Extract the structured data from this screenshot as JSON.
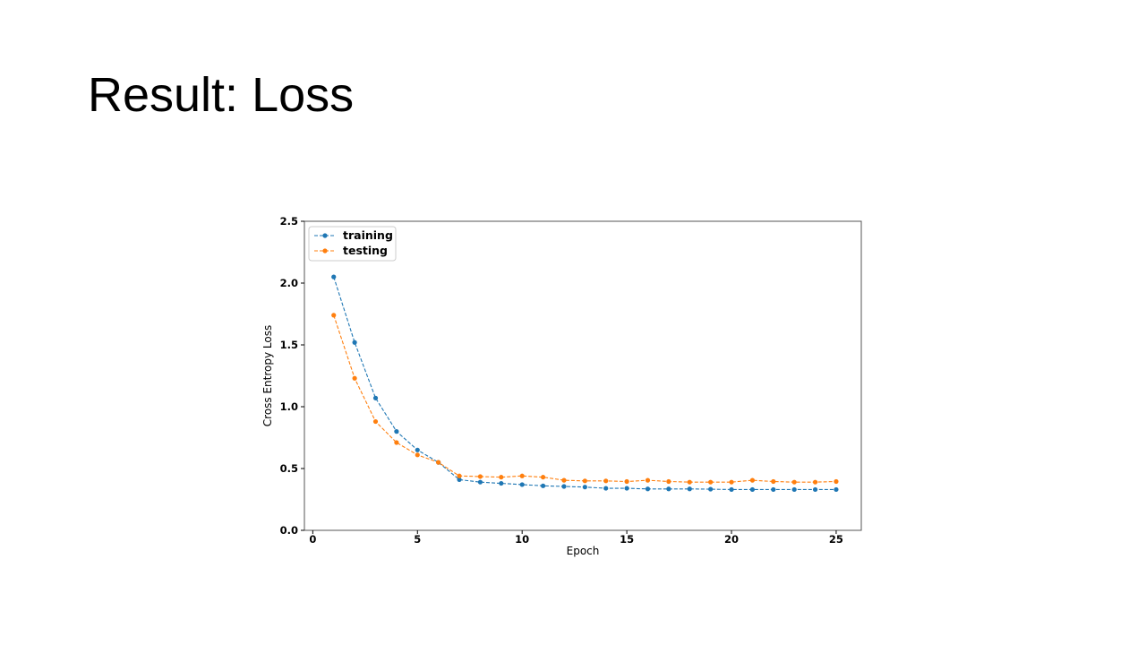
{
  "slide": {
    "title": "Result: Loss"
  },
  "chart_data": {
    "type": "line",
    "title": "",
    "xlabel": "Epoch",
    "ylabel": "Cross Entropy Loss",
    "xlim": [
      -0.4,
      26.2
    ],
    "ylim": [
      0.0,
      2.5
    ],
    "xticks": [
      0,
      5,
      10,
      15,
      20,
      25
    ],
    "yticks": [
      0.0,
      0.5,
      1.0,
      1.5,
      2.0,
      2.5
    ],
    "xtick_labels": [
      "0",
      "5",
      "10",
      "15",
      "20",
      "25"
    ],
    "ytick_labels": [
      "0.0",
      "0.5",
      "1.0",
      "1.5",
      "2.0",
      "2.5"
    ],
    "grid": false,
    "legend_position": "top-left",
    "line_style": "dashed",
    "marker": "circle",
    "x": [
      1,
      2,
      3,
      4,
      5,
      6,
      7,
      8,
      9,
      10,
      11,
      12,
      13,
      14,
      15,
      16,
      17,
      18,
      19,
      20,
      21,
      22,
      23,
      24,
      25
    ],
    "series": [
      {
        "name": "training",
        "color": "#1f77b4",
        "values": [
          2.05,
          1.52,
          1.07,
          0.8,
          0.65,
          0.55,
          0.41,
          0.39,
          0.38,
          0.37,
          0.36,
          0.355,
          0.35,
          0.34,
          0.34,
          0.335,
          0.335,
          0.335,
          0.333,
          0.33,
          0.33,
          0.33,
          0.33,
          0.33,
          0.33
        ]
      },
      {
        "name": "testing",
        "color": "#ff7f0e",
        "values": [
          1.74,
          1.23,
          0.88,
          0.71,
          0.61,
          0.55,
          0.44,
          0.435,
          0.43,
          0.44,
          0.43,
          0.405,
          0.4,
          0.4,
          0.395,
          0.405,
          0.395,
          0.39,
          0.39,
          0.39,
          0.405,
          0.395,
          0.39,
          0.39,
          0.395
        ]
      }
    ]
  }
}
